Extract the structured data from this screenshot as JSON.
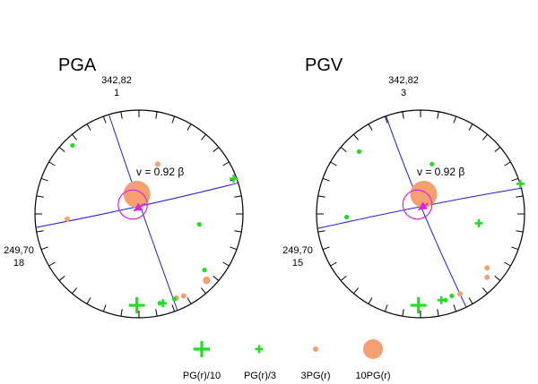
{
  "colors": {
    "green": "#22dd22",
    "orange": "#f4a070",
    "blue": "#1f1fd0",
    "magenta": "#e020e0",
    "ink": "#000000"
  },
  "panels": [
    {
      "title": "PGA",
      "top_label": "342,82",
      "top_sublabel": "1",
      "left_label": "249,70",
      "left_sublabel": "18",
      "velocity_label": "v = 0.92  β",
      "markers": [
        {
          "type": "dot-green",
          "u": -0.64,
          "v": -0.66
        },
        {
          "type": "orange-small",
          "u": 0.18,
          "v": -0.48
        },
        {
          "type": "orange-small",
          "u": -0.69,
          "v": 0.05
        },
        {
          "type": "cross-green-small",
          "u": 0.91,
          "v": -0.34
        },
        {
          "type": "dot-green",
          "u": 0.58,
          "v": 0.1
        },
        {
          "type": "dot-green",
          "u": 0.63,
          "v": 0.54
        },
        {
          "type": "orange-mid",
          "u": 0.65,
          "v": 0.64
        },
        {
          "type": "orange-small",
          "u": 0.43,
          "v": 0.79
        },
        {
          "type": "orange-small",
          "u": 0.36,
          "v": 0.81
        },
        {
          "type": "dot-green",
          "u": 0.34,
          "v": 0.82
        },
        {
          "type": "cross-green-small",
          "u": 0.23,
          "v": 0.86
        },
        {
          "type": "dot-green",
          "u": 0.2,
          "v": 0.86
        },
        {
          "type": "cross-green-big",
          "u": -0.02,
          "v": 0.88
        },
        {
          "type": "orange-big",
          "u": -0.02,
          "v": -0.19
        }
      ],
      "ring": {
        "u": -0.06,
        "v": -0.09,
        "r": 0.14
      },
      "arrow": {
        "u": 0.06,
        "v": -0.1,
        "u2": -0.05,
        "v2": -0.03
      },
      "great_circles": [
        {
          "a": {
            "u": -0.29,
            "v": -0.96
          },
          "mid": {
            "u": 0.01,
            "v": -0.08
          },
          "b": {
            "u": 0.37,
            "v": 0.93
          }
        },
        {
          "a": {
            "u": -0.99,
            "v": 0.13
          },
          "mid": {
            "u": 0.03,
            "v": -0.08
          },
          "b": {
            "u": 0.96,
            "v": -0.3
          }
        }
      ]
    },
    {
      "title": "PGV",
      "top_label": "342,82",
      "top_sublabel": "3",
      "left_label": "249,70",
      "left_sublabel": "15",
      "velocity_label": "v = 0.92  β",
      "markers": [
        {
          "type": "dot-green",
          "u": -0.59,
          "v": -0.6
        },
        {
          "type": "dot-green",
          "u": 0.11,
          "v": -0.48
        },
        {
          "type": "dot-green",
          "u": -0.71,
          "v": 0.03
        },
        {
          "type": "cross-green-small",
          "u": 0.96,
          "v": -0.29
        },
        {
          "type": "cross-green-small",
          "u": 0.56,
          "v": 0.09
        },
        {
          "type": "orange-small",
          "u": 0.64,
          "v": 0.52
        },
        {
          "type": "orange-small",
          "u": 0.64,
          "v": 0.61
        },
        {
          "type": "orange-small",
          "u": 0.38,
          "v": 0.77
        },
        {
          "type": "dot-green",
          "u": 0.3,
          "v": 0.79
        },
        {
          "type": "cross-green-small",
          "u": 0.2,
          "v": 0.83
        },
        {
          "type": "dot-green",
          "u": 0.24,
          "v": 0.83
        },
        {
          "type": "cross-green-big",
          "u": -0.02,
          "v": 0.88
        },
        {
          "type": "orange-big",
          "u": 0.03,
          "v": -0.19
        }
      ],
      "ring": {
        "u": -0.03,
        "v": -0.09,
        "r": 0.14
      },
      "arrow": {
        "u": 0.07,
        "v": -0.1,
        "u2": -0.02,
        "v2": -0.04
      },
      "great_circles": [
        {
          "a": {
            "u": -0.33,
            "v": -0.94
          },
          "mid": {
            "u": 0.0,
            "v": -0.08
          },
          "b": {
            "u": 0.44,
            "v": 0.9
          }
        },
        {
          "a": {
            "u": -0.99,
            "v": 0.14
          },
          "mid": {
            "u": 0.05,
            "v": -0.08
          },
          "b": {
            "u": 0.98,
            "v": -0.25
          }
        }
      ]
    }
  ],
  "legend": [
    {
      "type": "cross-green-big",
      "label": "PG(r)/10"
    },
    {
      "type": "cross-green-small",
      "label": "PG(r)/3"
    },
    {
      "type": "orange-small",
      "label": "3PG(r)"
    },
    {
      "type": "orange-xl",
      "label": "10PG(r)"
    }
  ]
}
